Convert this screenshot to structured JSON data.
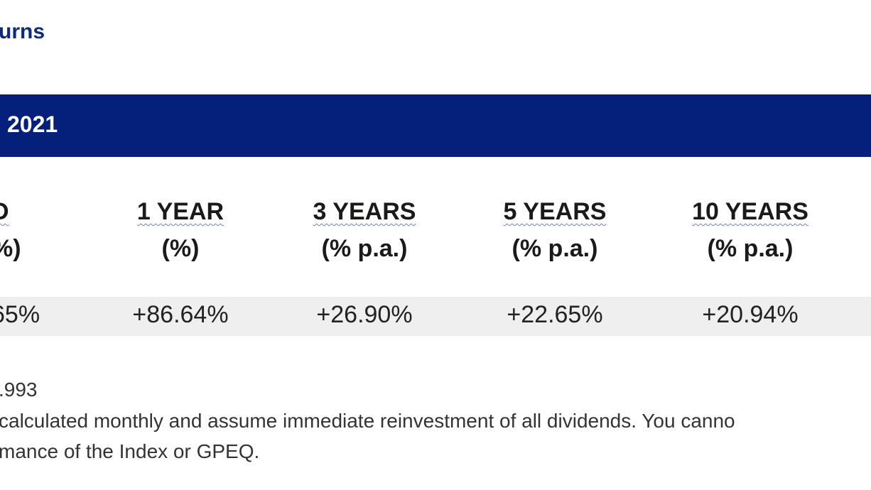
{
  "title": "urns",
  "banner": {
    "text": "2021"
  },
  "columns": [
    {
      "heading": "D",
      "unit": "%)",
      "value": "65%"
    },
    {
      "heading": "1 YEAR",
      "unit": "(%)",
      "value": "+86.64%"
    },
    {
      "heading": "3 YEARS",
      "unit": "(% p.a.)",
      "value": "+26.90%"
    },
    {
      "heading": "5 YEARS",
      "unit": "(% p.a.)",
      "value": "+22.65%"
    },
    {
      "heading": "10 YEARS",
      "unit": "(% p.a.)",
      "value": "+20.94%"
    }
  ],
  "notes": [
    ".993",
    "calculated monthly and assume immediate reinvestment of all dividends. You canno",
    "mance of the Index or GPEQ."
  ],
  "colors": {
    "title": "#0e2a7a",
    "banner": "#04207a",
    "row_band": "#efefef"
  }
}
